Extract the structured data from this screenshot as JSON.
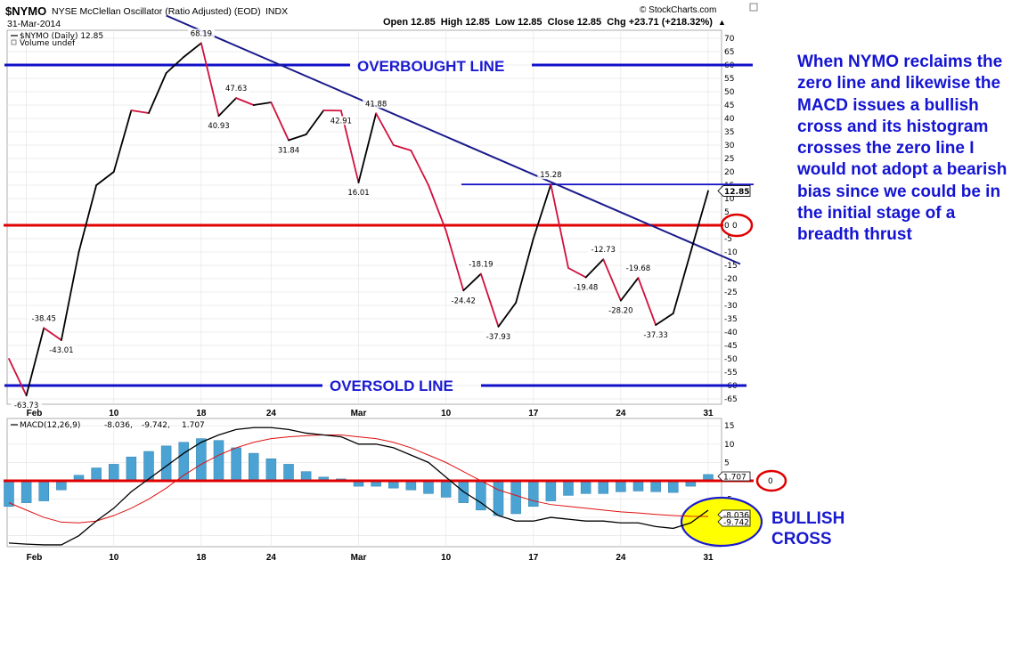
{
  "header": {
    "symbol": "$NYMO",
    "description": "NYSE McClellan Oscillator (Ratio Adjusted) (EOD)",
    "exchange": "INDX",
    "date": "31-Mar-2014",
    "ohlc": "Open 12.85  High 12.85  Low 12.85  Close 12.85  Chg +23.71 (+218.32%)",
    "up_arrow": "▲",
    "brand": "© StockCharts.com",
    "legend_main": "$NYMO (Daily) 12.85",
    "legend_volume": "Volume undef",
    "legend_macd_name": "MACD(12,26,9)",
    "legend_macd_vals": "-8.036, -9.742,",
    "legend_macd_hist": "1.707"
  },
  "annotations": {
    "overbought": "OVERBOUGHT LINE",
    "oversold": "OVERSOLD LINE",
    "bullish": "BULLISH",
    "cross": "CROSS",
    "zero_main": "0",
    "zero_macd": "0",
    "last_value": "12.85",
    "macd_hist_tag": "1.707",
    "macd_line_tag": "-8.036",
    "macd_signal_tag": "-9.742",
    "commentary": "When NYMO reclaims the zero line and likewise the MACD issues a bullish cross and its histogram crosses the zero line I would not adopt a bearish bias since we could be in the initial stage of a breadth thrust"
  },
  "colors": {
    "price_up": "#000000",
    "price_down": "#d0103c",
    "trendline": "#1a1a8c",
    "level_lines": "#1010c8",
    "zero_lines": "#e00000",
    "histogram": "#4aa3d3",
    "macd_line": "#000000",
    "signal_line": "#e01010",
    "highlight": "#ffff00"
  },
  "chart_data": [
    {
      "type": "line",
      "name": "$NYMO (Daily)",
      "x": [
        "2014-01-31",
        "2014-02-03",
        "2014-02-04",
        "2014-02-05",
        "2014-02-06",
        "2014-02-07",
        "2014-02-10",
        "2014-02-11",
        "2014-02-12",
        "2014-02-13",
        "2014-02-14",
        "2014-02-18",
        "2014-02-19",
        "2014-02-20",
        "2014-02-21",
        "2014-02-24",
        "2014-02-25",
        "2014-02-26",
        "2014-02-27",
        "2014-02-28",
        "2014-03-03",
        "2014-03-04",
        "2014-03-05",
        "2014-03-06",
        "2014-03-07",
        "2014-03-10",
        "2014-03-11",
        "2014-03-12",
        "2014-03-13",
        "2014-03-14",
        "2014-03-17",
        "2014-03-18",
        "2014-03-19",
        "2014-03-20",
        "2014-03-21",
        "2014-03-24",
        "2014-03-25",
        "2014-03-26",
        "2014-03-27",
        "2014-03-28",
        "2014-03-31"
      ],
      "values": [
        -50,
        -63.73,
        -38.45,
        -43.01,
        -10,
        15,
        20,
        43,
        42,
        57,
        63,
        68.19,
        40.93,
        47.63,
        45,
        46,
        31.84,
        34,
        43,
        42.91,
        16.01,
        41.88,
        30,
        28,
        15,
        -2,
        -24.42,
        -18.19,
        -37.93,
        -29,
        -5,
        15.28,
        -16,
        -19.48,
        -12.73,
        -28.2,
        -19.68,
        -37.33,
        -33,
        -10,
        12.85
      ],
      "labeled_points": [
        {
          "x": "2014-02-03",
          "label": "-63.73"
        },
        {
          "x": "2014-02-04",
          "label": "-38.45"
        },
        {
          "x": "2014-02-05",
          "label": "-43.01"
        },
        {
          "x": "2014-02-18",
          "label": "68.19"
        },
        {
          "x": "2014-02-19",
          "label": "40.93"
        },
        {
          "x": "2014-02-20",
          "label": "47.63"
        },
        {
          "x": "2014-02-25",
          "label": "31.84"
        },
        {
          "x": "2014-02-28",
          "label": "42.91"
        },
        {
          "x": "2014-03-03",
          "label": "16.01"
        },
        {
          "x": "2014-03-04",
          "label": "41.88"
        },
        {
          "x": "2014-03-11",
          "label": "-24.42"
        },
        {
          "x": "2014-03-12",
          "label": "-18.19"
        },
        {
          "x": "2014-03-13",
          "label": "-37.93"
        },
        {
          "x": "2014-03-18",
          "label": "15.28"
        },
        {
          "x": "2014-03-20",
          "label": "-19.48"
        },
        {
          "x": "2014-03-21",
          "label": "-12.73"
        },
        {
          "x": "2014-03-24",
          "label": "-28.20"
        },
        {
          "x": "2014-03-25",
          "label": "-19.68"
        },
        {
          "x": "2014-03-26",
          "label": "-37.33"
        }
      ],
      "x_ticks": [
        "Feb",
        "10",
        "18",
        "24",
        "Mar",
        "10",
        "17",
        "24",
        "31"
      ],
      "x_tick_dates": [
        "2014-02-03",
        "2014-02-10",
        "2014-02-18",
        "2014-02-24",
        "2014-03-03",
        "2014-03-10",
        "2014-03-17",
        "2014-03-24",
        "2014-03-31"
      ],
      "ylim": [
        -67,
        73
      ],
      "y_ticks": [
        70,
        65,
        60,
        55,
        50,
        45,
        40,
        35,
        30,
        25,
        20,
        15,
        10,
        5,
        0,
        -5,
        -10,
        -15,
        -20,
        -25,
        -30,
        -35,
        -40,
        -45,
        -50,
        -55,
        -60,
        -65
      ],
      "reference_lines": [
        {
          "label": "OVERBOUGHT LINE",
          "value": 60
        },
        {
          "label": "OVERSOLD LINE",
          "value": -60
        },
        {
          "label": "0",
          "value": 0
        },
        {
          "value": 15.28
        }
      ],
      "trendline": {
        "from": {
          "x": "2014-02-13",
          "y": 78.5
        },
        "to": {
          "x": "2014-03-31",
          "y": -14.5
        }
      },
      "grid": true,
      "legend": "top-left"
    },
    {
      "type": "bar",
      "name": "MACD(12,26,9)",
      "x": [
        "2014-01-31",
        "2014-02-03",
        "2014-02-04",
        "2014-02-05",
        "2014-02-06",
        "2014-02-07",
        "2014-02-10",
        "2014-02-11",
        "2014-02-12",
        "2014-02-13",
        "2014-02-14",
        "2014-02-18",
        "2014-02-19",
        "2014-02-20",
        "2014-02-21",
        "2014-02-24",
        "2014-02-25",
        "2014-02-26",
        "2014-02-27",
        "2014-02-28",
        "2014-03-03",
        "2014-03-04",
        "2014-03-05",
        "2014-03-06",
        "2014-03-07",
        "2014-03-10",
        "2014-03-11",
        "2014-03-12",
        "2014-03-13",
        "2014-03-14",
        "2014-03-17",
        "2014-03-18",
        "2014-03-19",
        "2014-03-20",
        "2014-03-21",
        "2014-03-24",
        "2014-03-25",
        "2014-03-26",
        "2014-03-27",
        "2014-03-28",
        "2014-03-31"
      ],
      "series": [
        {
          "name": "MACD",
          "values": [
            -17,
            -17.3,
            -17.5,
            -17.5,
            -15,
            -11,
            -7.5,
            -3,
            0.5,
            4,
            7.5,
            10.5,
            12.5,
            14,
            14.5,
            14.5,
            14,
            13,
            12.5,
            12,
            10,
            10,
            9,
            7,
            5,
            1,
            -3,
            -6,
            -9.5,
            -11,
            -11,
            -10,
            -10.5,
            -11,
            -11,
            -11.5,
            -11.5,
            -12.5,
            -13,
            -11.5,
            -8.036
          ]
        },
        {
          "name": "Signal",
          "values": [
            -6,
            -8,
            -10,
            -11.3,
            -11.5,
            -11,
            -9.5,
            -7.5,
            -5,
            -2,
            1.5,
            4.5,
            7,
            9,
            10.5,
            11.5,
            12,
            12.3,
            12.5,
            12.5,
            12,
            11.5,
            10.5,
            9,
            7,
            5,
            2.5,
            0,
            -2.5,
            -4,
            -5.5,
            -6.5,
            -7,
            -7.5,
            -8,
            -8.5,
            -8.8,
            -9.2,
            -9.5,
            -9.7,
            -9.742
          ]
        },
        {
          "name": "Histogram",
          "values": [
            -7,
            -6,
            -5.5,
            -2.5,
            1.5,
            3.5,
            4.5,
            6.5,
            8,
            9.5,
            10.5,
            11.5,
            11,
            9,
            7.5,
            6,
            4.5,
            2.5,
            1,
            0.5,
            -1.5,
            -1.5,
            -2,
            -2.5,
            -3.5,
            -4.5,
            -6,
            -8,
            -9.5,
            -9,
            -7,
            -5.5,
            -4,
            -3.5,
            -3.5,
            -3,
            -2.8,
            -3,
            -3.2,
            -1.5,
            1.707
          ]
        }
      ],
      "ylim": [
        -18,
        17
      ],
      "y_ticks": [
        15,
        10,
        5,
        0,
        -5,
        -10,
        -15
      ],
      "x_ticks": [
        "Feb",
        "10",
        "18",
        "24",
        "Mar",
        "10",
        "17",
        "24",
        "31"
      ],
      "x_tick_dates": [
        "2014-02-03",
        "2014-02-10",
        "2014-02-18",
        "2014-02-24",
        "2014-03-03",
        "2014-03-10",
        "2014-03-17",
        "2014-03-24",
        "2014-03-31"
      ],
      "grid": true
    }
  ]
}
